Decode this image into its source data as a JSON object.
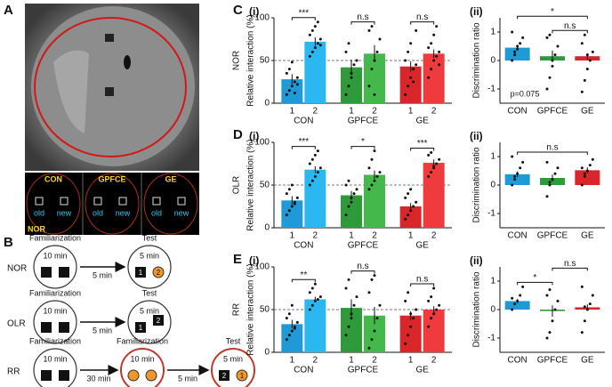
{
  "panel_labels": [
    "A",
    "B",
    "C",
    "D",
    "E"
  ],
  "sublabels": [
    "(i)",
    "(ii)"
  ],
  "panel_a": {
    "groups": [
      "CON",
      "GPFCE",
      "GE"
    ],
    "old": "old",
    "new": "new",
    "task": "NOR"
  },
  "panel_b": {
    "rows": [
      {
        "task": "NOR",
        "stages": [
          {
            "title": "Familiarization",
            "duration": "10 min"
          },
          {
            "title": "Test",
            "duration": "5 min",
            "objects": [
              "1",
              "2"
            ]
          }
        ],
        "intervals": [
          "5 min"
        ]
      },
      {
        "task": "OLR",
        "stages": [
          {
            "title": "Familiarization",
            "duration": "10 min"
          },
          {
            "title": "Test",
            "duration": "5 min",
            "objects": [
              "1",
              "2"
            ]
          }
        ],
        "intervals": [
          "5 min"
        ]
      },
      {
        "task": "RR",
        "stages": [
          {
            "title": "Familiarization",
            "duration": "10 min"
          },
          {
            "title": "Familiarization",
            "duration": "10 min"
          },
          {
            "title": "Test",
            "duration": "5 min",
            "objects": [
              "2",
              "1"
            ]
          }
        ],
        "intervals": [
          "30 min",
          "5 min"
        ]
      }
    ]
  },
  "chart_data": [
    {
      "type": "bar",
      "side_label": "NOR",
      "y_label": "Relative interaction (%)",
      "categories": [
        "1",
        "2",
        "1",
        "2",
        "1",
        "2"
      ],
      "groups": [
        "CON",
        "GPFCE",
        "GE"
      ],
      "values": [
        28,
        72,
        42,
        58,
        43,
        58
      ],
      "errors": [
        6,
        5,
        9,
        10,
        6,
        5
      ],
      "colors": [
        "#1f9ad6",
        "#2bb8f0",
        "#2e9a3a",
        "#45b84c",
        "#d9262b",
        "#ef3a3e"
      ],
      "points": [
        [
          10,
          15,
          20,
          25,
          30,
          35,
          40,
          48,
          12,
          22
        ],
        [
          55,
          60,
          65,
          70,
          75,
          80,
          85,
          90,
          95,
          68
        ],
        [
          10,
          20,
          35,
          45,
          50,
          60,
          70,
          30
        ],
        [
          20,
          40,
          50,
          60,
          75,
          85,
          90,
          10
        ],
        [
          10,
          20,
          30,
          40,
          45,
          50,
          60,
          70,
          25,
          85
        ],
        [
          30,
          40,
          50,
          55,
          60,
          65,
          70,
          80,
          90,
          45
        ]
      ],
      "ylim": [
        0,
        100
      ],
      "yticks": [
        0,
        50,
        100
      ],
      "hline": 50,
      "significance": [
        {
          "bars": [
            0,
            1
          ],
          "label": "***"
        },
        {
          "bars": [
            2,
            3
          ],
          "label": "n.s"
        },
        {
          "bars": [
            4,
            5
          ],
          "label": "n.s"
        }
      ]
    },
    {
      "type": "bar",
      "y_label": "Discrimination ratio",
      "categories": [
        "CON",
        "GPFCE",
        "GE"
      ],
      "values": [
        0.45,
        0.15,
        0.15
      ],
      "errors": [
        0.1,
        0.2,
        0.1
      ],
      "colors": [
        "#1f9ad6",
        "#2e9a3a",
        "#d9262b"
      ],
      "points": [
        [
          0,
          0.2,
          0.4,
          0.6,
          0.8,
          1.0,
          0.3,
          0.5
        ],
        [
          -1.0,
          -0.6,
          -0.2,
          0.2,
          0.5,
          0.8,
          0.9,
          0
        ],
        [
          -1.1,
          -0.7,
          -0.3,
          0,
          0.3,
          0.6,
          0.9,
          0.2
        ]
      ],
      "ylim": [
        -1.5,
        1.5
      ],
      "yticks": [
        -1,
        0,
        1
      ],
      "note": "p=0.075",
      "significance": [
        {
          "bars": [
            0,
            2
          ],
          "label": "*"
        },
        {
          "bars": [
            1,
            2
          ],
          "label": "n.s"
        }
      ]
    },
    {
      "type": "bar",
      "side_label": "OLR",
      "y_label": "Relative interaction (%)",
      "categories": [
        "1",
        "2",
        "1",
        "2",
        "1",
        "2"
      ],
      "groups": [
        "CON",
        "GPFCE",
        "GE"
      ],
      "values": [
        32,
        68,
        38,
        62,
        25,
        76
      ],
      "errors": [
        5,
        4,
        5,
        5,
        4,
        4
      ],
      "colors": [
        "#1f9ad6",
        "#2bb8f0",
        "#2e9a3a",
        "#45b84c",
        "#d9262b",
        "#ef3a3e"
      ],
      "points": [
        [
          15,
          20,
          25,
          30,
          35,
          40,
          45,
          50,
          28
        ],
        [
          50,
          55,
          60,
          65,
          70,
          75,
          80,
          85,
          90
        ],
        [
          15,
          25,
          30,
          40,
          45,
          50,
          55,
          35
        ],
        [
          45,
          50,
          55,
          60,
          65,
          70,
          80,
          90
        ],
        [
          10,
          15,
          20,
          25,
          30,
          35,
          40,
          45
        ],
        [
          60,
          65,
          70,
          75,
          80,
          85,
          88,
          72
        ]
      ],
      "ylim": [
        0,
        100
      ],
      "yticks": [
        0,
        50,
        100
      ],
      "hline": 50,
      "significance": [
        {
          "bars": [
            0,
            1
          ],
          "label": "***"
        },
        {
          "bars": [
            2,
            3
          ],
          "label": "*"
        },
        {
          "bars": [
            4,
            5
          ],
          "label": "***"
        }
      ]
    },
    {
      "type": "bar",
      "y_label": "Discrimination ratio",
      "categories": [
        "CON",
        "GPFCE",
        "GE"
      ],
      "values": [
        0.38,
        0.25,
        0.52
      ],
      "errors": [
        0.1,
        0.12,
        0.1
      ],
      "colors": [
        "#1f9ad6",
        "#2e9a3a",
        "#d9262b"
      ],
      "points": [
        [
          0,
          0.2,
          0.4,
          0.6,
          0.8,
          1.0,
          0.3
        ],
        [
          -0.4,
          0,
          0.2,
          0.4,
          0.6,
          0.8,
          0.1
        ],
        [
          0,
          0.3,
          0.5,
          0.7,
          0.9,
          0.6,
          0.4
        ]
      ],
      "ylim": [
        -1.5,
        1.5
      ],
      "yticks": [
        -1,
        0,
        1
      ],
      "significance": [
        {
          "bars": [
            0,
            2
          ],
          "label": "n.s"
        }
      ]
    },
    {
      "type": "bar",
      "side_label": "RR",
      "y_label": "Relative interaction (%)",
      "categories": [
        "1",
        "2",
        "1",
        "2",
        "1",
        "2"
      ],
      "groups": [
        "CON",
        "GPFCE",
        "GE"
      ],
      "values": [
        33,
        62,
        52,
        43,
        43,
        50
      ],
      "errors": [
        5,
        3,
        10,
        10,
        5,
        4
      ],
      "colors": [
        "#1f9ad6",
        "#2bb8f0",
        "#2e9a3a",
        "#45b84c",
        "#d9262b",
        "#ef3a3e"
      ],
      "points": [
        [
          15,
          20,
          25,
          30,
          35,
          40,
          45,
          55,
          28
        ],
        [
          50,
          55,
          60,
          62,
          65,
          70,
          75,
          80
        ],
        [
          20,
          30,
          45,
          55,
          65,
          75,
          85,
          40
        ],
        [
          5,
          15,
          25,
          40,
          55,
          70,
          85,
          90
        ],
        [
          10,
          20,
          30,
          40,
          50,
          60,
          70,
          45
        ],
        [
          30,
          40,
          45,
          50,
          55,
          60,
          65,
          75
        ]
      ],
      "ylim": [
        0,
        100
      ],
      "yticks": [
        0,
        50,
        100
      ],
      "hline": 50,
      "significance": [
        {
          "bars": [
            0,
            1
          ],
          "label": "**"
        },
        {
          "bars": [
            2,
            3
          ],
          "label": "n.s"
        },
        {
          "bars": [
            4,
            5
          ],
          "label": "n.s"
        }
      ]
    },
    {
      "type": "bar",
      "y_label": "Discrimination ratio",
      "categories": [
        "CON",
        "GPFCE",
        "GE"
      ],
      "values": [
        0.3,
        -0.05,
        0.08
      ],
      "errors": [
        0.08,
        0.2,
        0.1
      ],
      "colors": [
        "#1f9ad6",
        "#2e9a3a",
        "#d9262b"
      ],
      "points": [
        [
          0,
          0.2,
          0.3,
          0.5,
          0.8,
          0.4
        ],
        [
          -1.0,
          -0.8,
          -0.4,
          0,
          0.3,
          0.5,
          0.7
        ],
        [
          -0.8,
          -0.4,
          0,
          0.2,
          0.5,
          0.8,
          0.1
        ]
      ],
      "ylim": [
        -1.5,
        1.5
      ],
      "yticks": [
        -1,
        0,
        1
      ],
      "significance": [
        {
          "bars": [
            0,
            1
          ],
          "label": "*"
        },
        {
          "bars": [
            1,
            2
          ],
          "label": "n.s"
        }
      ]
    }
  ]
}
